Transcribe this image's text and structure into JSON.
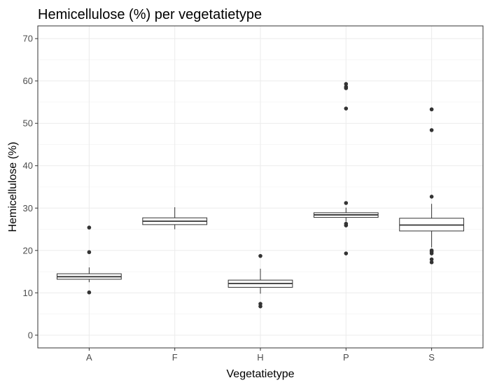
{
  "chart_data": {
    "type": "boxplot",
    "title": "Hemicellulose (%) per vegetatietype",
    "xlabel": "Vegetatietype",
    "ylabel": "Hemicellulose (%)",
    "ylim": [
      -3,
      73
    ],
    "yticks": [
      "0",
      "10",
      "20",
      "30",
      "40",
      "50",
      "60",
      "70"
    ],
    "grid": true,
    "categories": [
      "A",
      "F",
      "H",
      "P",
      "S"
    ],
    "boxes": [
      {
        "category": "A",
        "whisker_low": 12.5,
        "q1": 13.2,
        "median": 13.8,
        "q3": 14.5,
        "whisker_high": 16.0,
        "outliers": [
          10.1,
          19.6,
          25.4
        ]
      },
      {
        "category": "F",
        "whisker_low": 25.0,
        "q1": 26.1,
        "median": 26.9,
        "q3": 27.7,
        "whisker_high": 30.2,
        "outliers": []
      },
      {
        "category": "H",
        "whisker_low": 9.8,
        "q1": 11.3,
        "median": 12.2,
        "q3": 13.0,
        "whisker_high": 15.7,
        "outliers": [
          6.8,
          7.4,
          18.7
        ]
      },
      {
        "category": "P",
        "whisker_low": 26.8,
        "q1": 27.8,
        "median": 28.4,
        "q3": 28.9,
        "whisker_high": 30.1,
        "outliers": [
          19.3,
          25.9,
          26.3,
          31.2,
          53.5,
          58.3,
          58.6,
          59.3
        ]
      },
      {
        "category": "S",
        "whisker_low": 20.7,
        "q1": 24.6,
        "median": 26.0,
        "q3": 27.6,
        "whisker_high": 31.0,
        "outliers": [
          17.2,
          17.9,
          19.3,
          19.7,
          20.0,
          32.7,
          48.4,
          53.3
        ]
      }
    ]
  }
}
